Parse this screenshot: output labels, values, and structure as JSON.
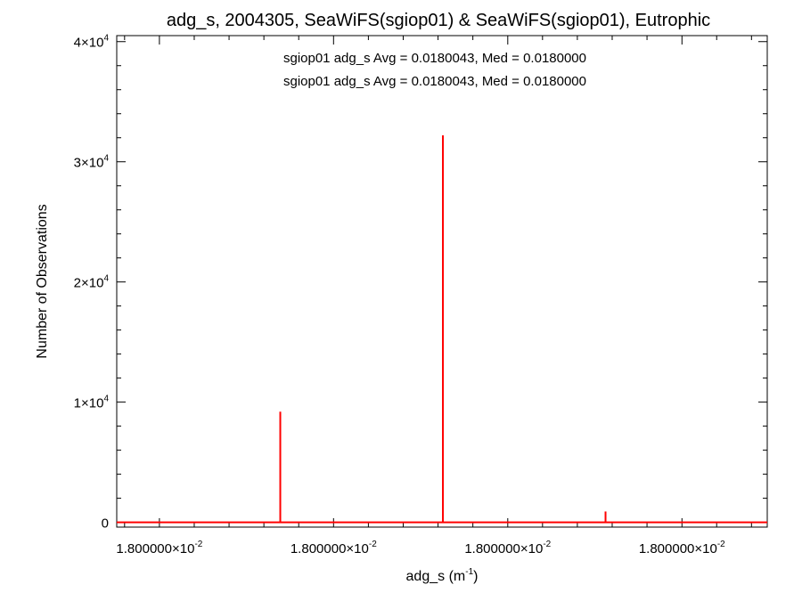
{
  "chart_data": {
    "type": "bar",
    "title": "adg_s, 2004305, SeaWiFS(sgiop01) & SeaWiFS(sgiop01), Eutrophic",
    "xlabel": "adg_s (m",
    "xlabel_sup": "-1",
    "xlabel_close": ")",
    "ylabel": "Number of Observations",
    "annotations": [
      {
        "text": "sgiop01 adg_s Avg = 0.0180043, Med = 0.0180000",
        "color": "#000000"
      },
      {
        "text": "sgiop01 adg_s Avg = 0.0180043, Med = 0.0180000",
        "color": "#ff0000"
      }
    ],
    "x_ticks": [
      {
        "pos": 0.0656,
        "mant": "1.800000",
        "exp": "-2"
      },
      {
        "pos": 0.3333,
        "mant": "1.800000",
        "exp": "-2"
      },
      {
        "pos": 0.6011,
        "mant": "1.800000",
        "exp": "-2"
      },
      {
        "pos": 0.8689,
        "mant": "1.800000",
        "exp": "-2"
      }
    ],
    "y_ticks": [
      {
        "value": 0,
        "mant": "0",
        "exp": ""
      },
      {
        "value": 10000,
        "mant": "1",
        "exp": "4"
      },
      {
        "value": 20000,
        "mant": "2",
        "exp": "4"
      },
      {
        "value": 30000,
        "mant": "3",
        "exp": "4"
      },
      {
        "value": 40000,
        "mant": "4",
        "exp": "4"
      }
    ],
    "ylim": [
      -400,
      40500
    ],
    "xlim": [
      0,
      1
    ],
    "series": [
      {
        "color": "#ff0000",
        "bars": [
          {
            "x": 0.2514,
            "y": 9200
          },
          {
            "x": 0.5014,
            "y": 32200
          },
          {
            "x": 0.7514,
            "y": 900
          }
        ]
      }
    ]
  }
}
